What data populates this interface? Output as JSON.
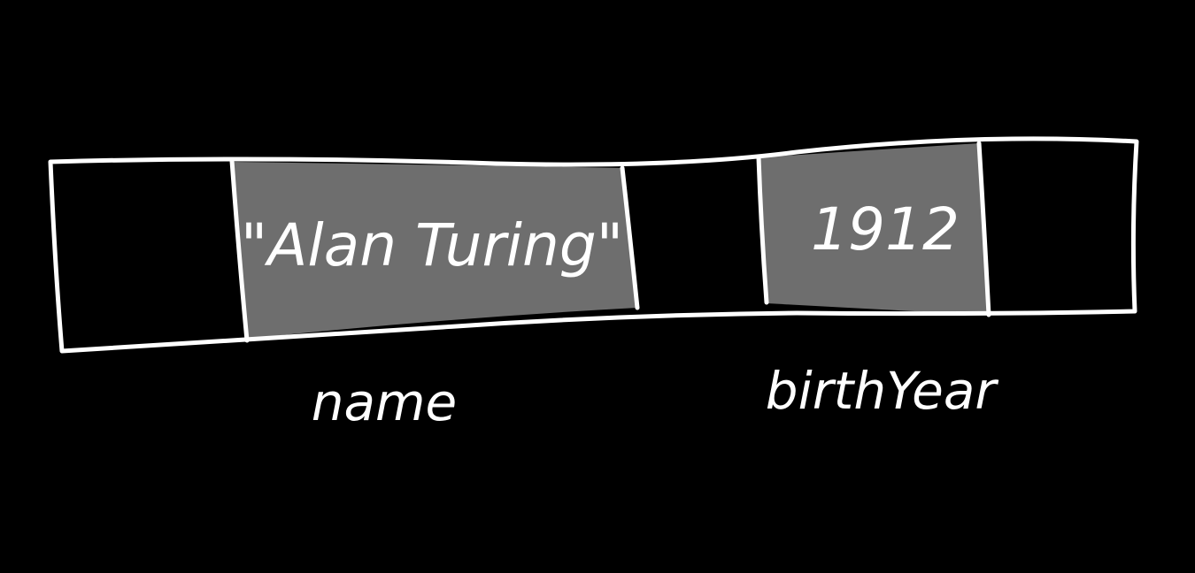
{
  "diagram": {
    "fields": [
      {
        "value": "\"Alan Turing\"",
        "label": "name"
      },
      {
        "value": "1912",
        "label": "birthYear"
      }
    ],
    "colors": {
      "background": "#000000",
      "ink": "#ffffff",
      "filled_cell": "#6e6e6e"
    }
  }
}
